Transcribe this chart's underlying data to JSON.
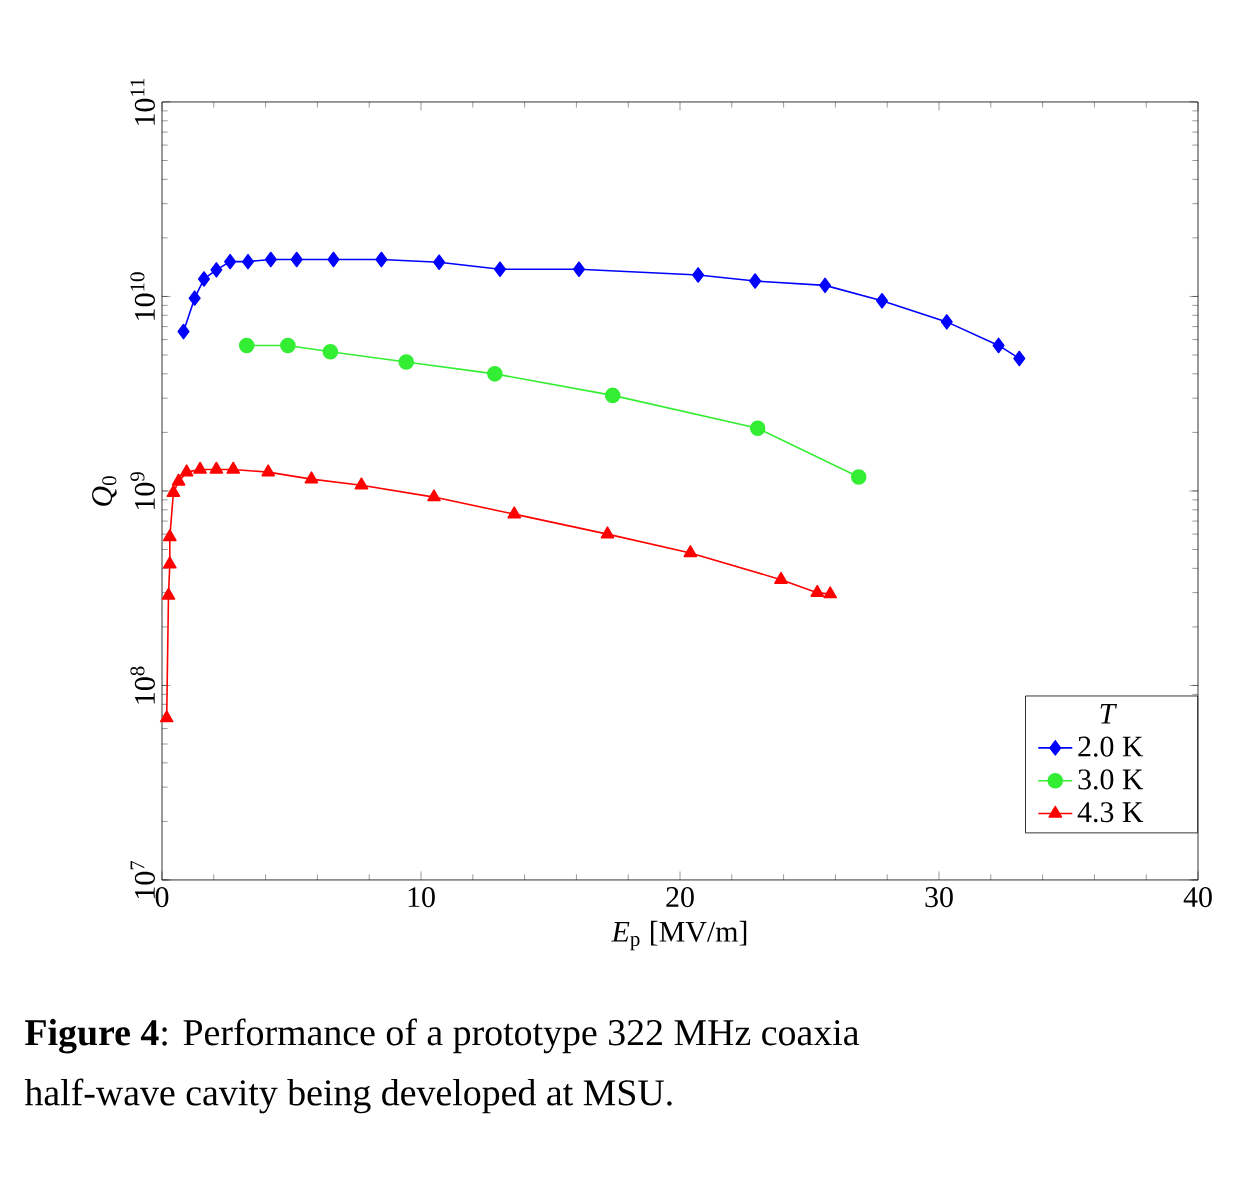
{
  "chart_data": {
    "type": "line",
    "xlabel": "*E*$_{p}$ [MV/m]",
    "ylabel": "*Q*$_{0}$",
    "legend_title": "T",
    "legend": "bottom right",
    "log": "y",
    "grid": false,
    "xlim": [
      0,
      40
    ],
    "xticks": [
      0,
      10,
      20,
      30,
      40
    ],
    "ylim": [
      10000000,
      100000000000
    ],
    "yticks": [
      {
        "value": 10000000,
        "label": "10$^{7}$"
      },
      {
        "value": 100000000,
        "label": "10$^{8}$"
      },
      {
        "value": 1000000000,
        "label": "10$^{9}$"
      },
      {
        "value": 10000000000,
        "label": "10$^{10}$"
      },
      {
        "value": 100000000000,
        "label": "10$^{11}$"
      }
    ],
    "series": [
      {
        "name": "2.0 K",
        "color": "#0000ff",
        "marker": "diamond",
        "x": [
          0.83,
          1.26,
          1.62,
          2.1,
          2.63,
          3.32,
          4.2,
          5.2,
          6.62,
          8.47,
          10.7,
          13.05,
          16.1,
          20.7,
          22.9,
          25.6,
          27.8,
          30.3,
          32.3,
          33.1
        ],
        "values": [
          6600000000,
          9800000000,
          12300000000,
          13700000000,
          15100000000,
          15100000000,
          15500000000,
          15500000000,
          15500000000,
          15500000000,
          15000000000,
          13800000000,
          13800000000,
          12900000000,
          12000000000,
          11400000000,
          9500000000,
          7400000000,
          5600000000,
          4800000000
        ]
      },
      {
        "name": "3.0 K",
        "color": "#33ee33",
        "marker": "circle",
        "x": [
          3.27,
          4.86,
          6.5,
          9.43,
          12.85,
          17.4,
          23.0,
          26.9
        ],
        "values": [
          5600000000,
          5600000000,
          5200000000,
          4600000000,
          4000000000,
          3100000000,
          2100000000,
          1180000000
        ]
      },
      {
        "name": "4.3 K",
        "color": "#ff0000",
        "marker": "triangle",
        "x": [
          0.18,
          0.25,
          0.3,
          0.3,
          0.44,
          0.64,
          0.95,
          1.47,
          2.1,
          2.75,
          4.1,
          5.77,
          7.7,
          10.5,
          13.6,
          17.2,
          20.4,
          23.9,
          25.3,
          25.8
        ],
        "values": [
          68000000,
          290000000,
          420000000,
          580000000,
          980000000,
          1120000000,
          1250000000,
          1290000000,
          1290000000,
          1290000000,
          1250000000,
          1150000000,
          1070000000,
          930000000,
          760000000,
          600000000,
          480000000,
          350000000,
          300000000,
          295000000
        ]
      }
    ],
    "annotations": [
      "**Figure 4**: Performance of a prototype 322 MHz coaxia",
      "half-wave cavity being developed at MSU."
    ]
  }
}
